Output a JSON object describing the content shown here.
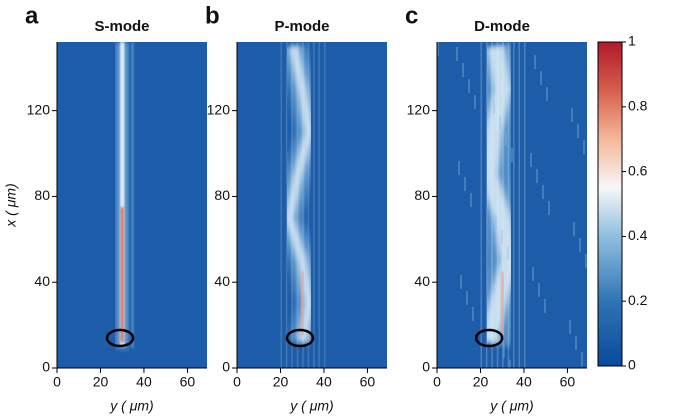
{
  "chart_data": [
    {
      "type": "heatmap",
      "panel": "a",
      "title": "S-mode",
      "xlabel": "y ( μm)",
      "ylabel": "x ( μm)",
      "xlim": [
        0,
        69
      ],
      "ylim": [
        0,
        152
      ],
      "xticks": [
        0,
        20,
        40,
        60
      ],
      "yticks": [
        0,
        40,
        80,
        120
      ]
    },
    {
      "type": "heatmap",
      "panel": "b",
      "title": "P-mode",
      "xlabel": "y ( μm)",
      "xlim": [
        0,
        69
      ],
      "ylim": [
        0,
        152
      ],
      "xticks": [
        0,
        20,
        40,
        60
      ],
      "yticks": [
        0,
        40,
        80,
        120
      ]
    },
    {
      "type": "heatmap",
      "panel": "c",
      "title": "D-mode",
      "xlabel": "y ( μm)",
      "xlim": [
        0,
        69
      ],
      "ylim": [
        0,
        152
      ],
      "xticks": [
        0,
        20,
        40,
        60
      ],
      "yticks": [
        0,
        40,
        80,
        120
      ],
      "colorbar": {
        "lim": [
          0,
          1
        ],
        "ticks": [
          0,
          0.2,
          0.4,
          0.6,
          0.8,
          1
        ]
      }
    }
  ]
}
